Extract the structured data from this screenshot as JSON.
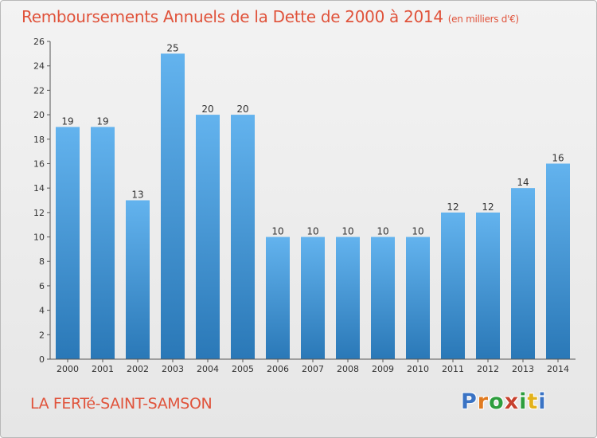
{
  "header": {
    "title": "Remboursements Annuels de la Dette de 2000 à 2014",
    "unit": "(en milliers d'€)"
  },
  "footer": {
    "commune": "LA FERTé-SAINT-SAMSON",
    "brand": [
      "P",
      "r",
      "o",
      "x",
      "i",
      "t",
      "i"
    ],
    "brand_colors": [
      "#3a73c4",
      "#e07a1f",
      "#2e9e3e",
      "#c7412e",
      "#2e9e3e",
      "#e3b21b",
      "#3a73c4"
    ]
  },
  "colors": {
    "bar_light": "#63b3ee",
    "bar_dark": "#2a78b7",
    "title": "#e0533b"
  },
  "chart_data": {
    "type": "bar",
    "categories": [
      "2000",
      "2001",
      "2002",
      "2003",
      "2004",
      "2005",
      "2006",
      "2007",
      "2008",
      "2009",
      "2010",
      "2011",
      "2012",
      "2013",
      "2014"
    ],
    "values": [
      19,
      19,
      13,
      25,
      20,
      20,
      10,
      10,
      10,
      10,
      10,
      12,
      12,
      14,
      16
    ],
    "ylim": [
      0,
      26
    ],
    "yticks": [
      0,
      2,
      4,
      6,
      8,
      10,
      12,
      14,
      16,
      18,
      20,
      22,
      24,
      26
    ],
    "grid": false,
    "data_labels": true
  }
}
